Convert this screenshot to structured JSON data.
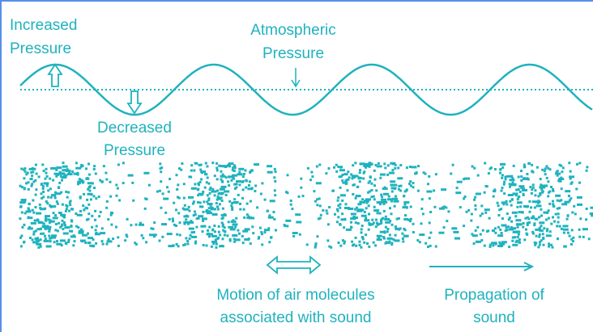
{
  "labels": [
    {
      "lines": [
        "Increased",
        "Pressure"
      ]
    },
    {
      "lines": [
        "Atmospheric",
        "Pressure"
      ]
    },
    {
      "lines": [
        "Decreased",
        "Pressure"
      ]
    },
    {
      "lines": [
        "Motion of air molecules",
        "associated with sound"
      ]
    },
    {
      "lines": [
        "Propagation of",
        "sound"
      ]
    }
  ]
}
